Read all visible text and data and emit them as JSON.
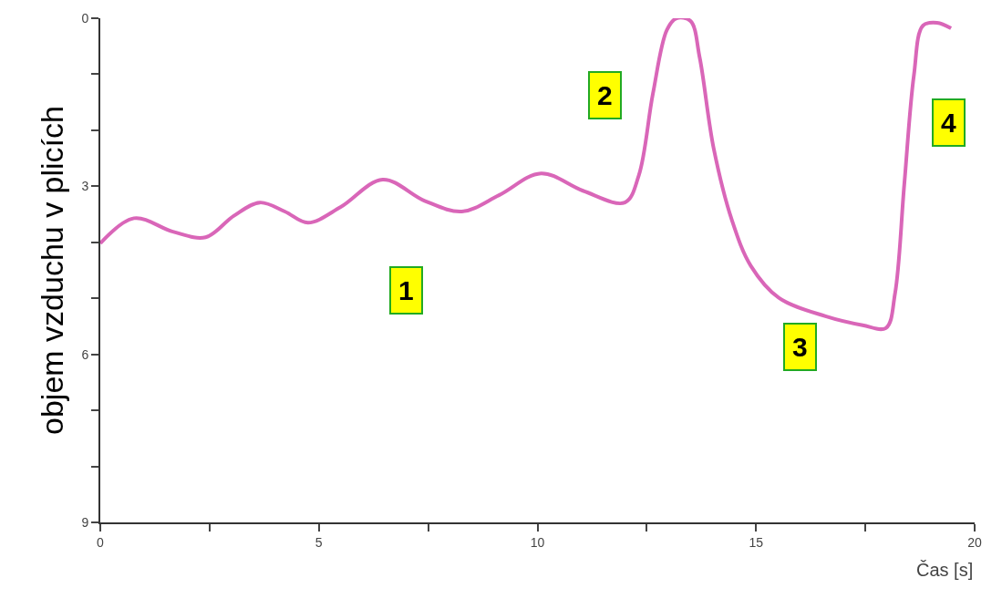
{
  "chart_data": {
    "type": "line",
    "xlabel": "Čas [s]",
    "ylabel": "objem vzduchu v plicích",
    "x": [
      0,
      0.77,
      1.66,
      2.41,
      3.05,
      3.65,
      4.22,
      4.75,
      5.5,
      6.46,
      7.42,
      8.27,
      9.12,
      10.08,
      11.04,
      12.0,
      12.32,
      12.64,
      12.96,
      13.18,
      13.5,
      13.71,
      14.03,
      14.45,
      14.88,
      15.52,
      16.59,
      17.44,
      17.97,
      18.18,
      18.39,
      18.61,
      18.82,
      19.14,
      19.46
    ],
    "series": [
      {
        "color": "#d966b8",
        "values": [
          4.02,
          3.57,
          3.81,
          3.91,
          3.53,
          3.29,
          3.45,
          3.65,
          3.37,
          2.88,
          3.26,
          3.45,
          3.16,
          2.77,
          3.08,
          3.29,
          2.8,
          1.35,
          0.21,
          0,
          0.05,
          0.7,
          2.32,
          3.61,
          4.42,
          4.99,
          5.32,
          5.48,
          5.53,
          4.91,
          2.97,
          1.02,
          0.13,
          0.08,
          0.18
        ]
      }
    ],
    "xlim": [
      0,
      20
    ],
    "ylim": [
      9,
      0
    ],
    "xticks": [
      0,
      {
        "value": 2.5,
        "label": null
      },
      5,
      {
        "value": 7.5,
        "label": null
      },
      10,
      {
        "value": 12.5,
        "label": null
      },
      15,
      {
        "value": 17.5,
        "label": null
      },
      20
    ],
    "yticks": [
      0,
      {
        "value": 1,
        "label": null
      },
      {
        "value": 2,
        "label": null
      },
      3,
      {
        "value": 4,
        "label": null
      },
      {
        "value": 5,
        "label": null
      },
      6,
      {
        "value": 7,
        "label": null
      },
      {
        "value": 8,
        "label": null
      },
      9
    ],
    "annotations": [
      "1",
      "2",
      "3",
      "4"
    ],
    "marker": "none",
    "line_style": "solid"
  }
}
